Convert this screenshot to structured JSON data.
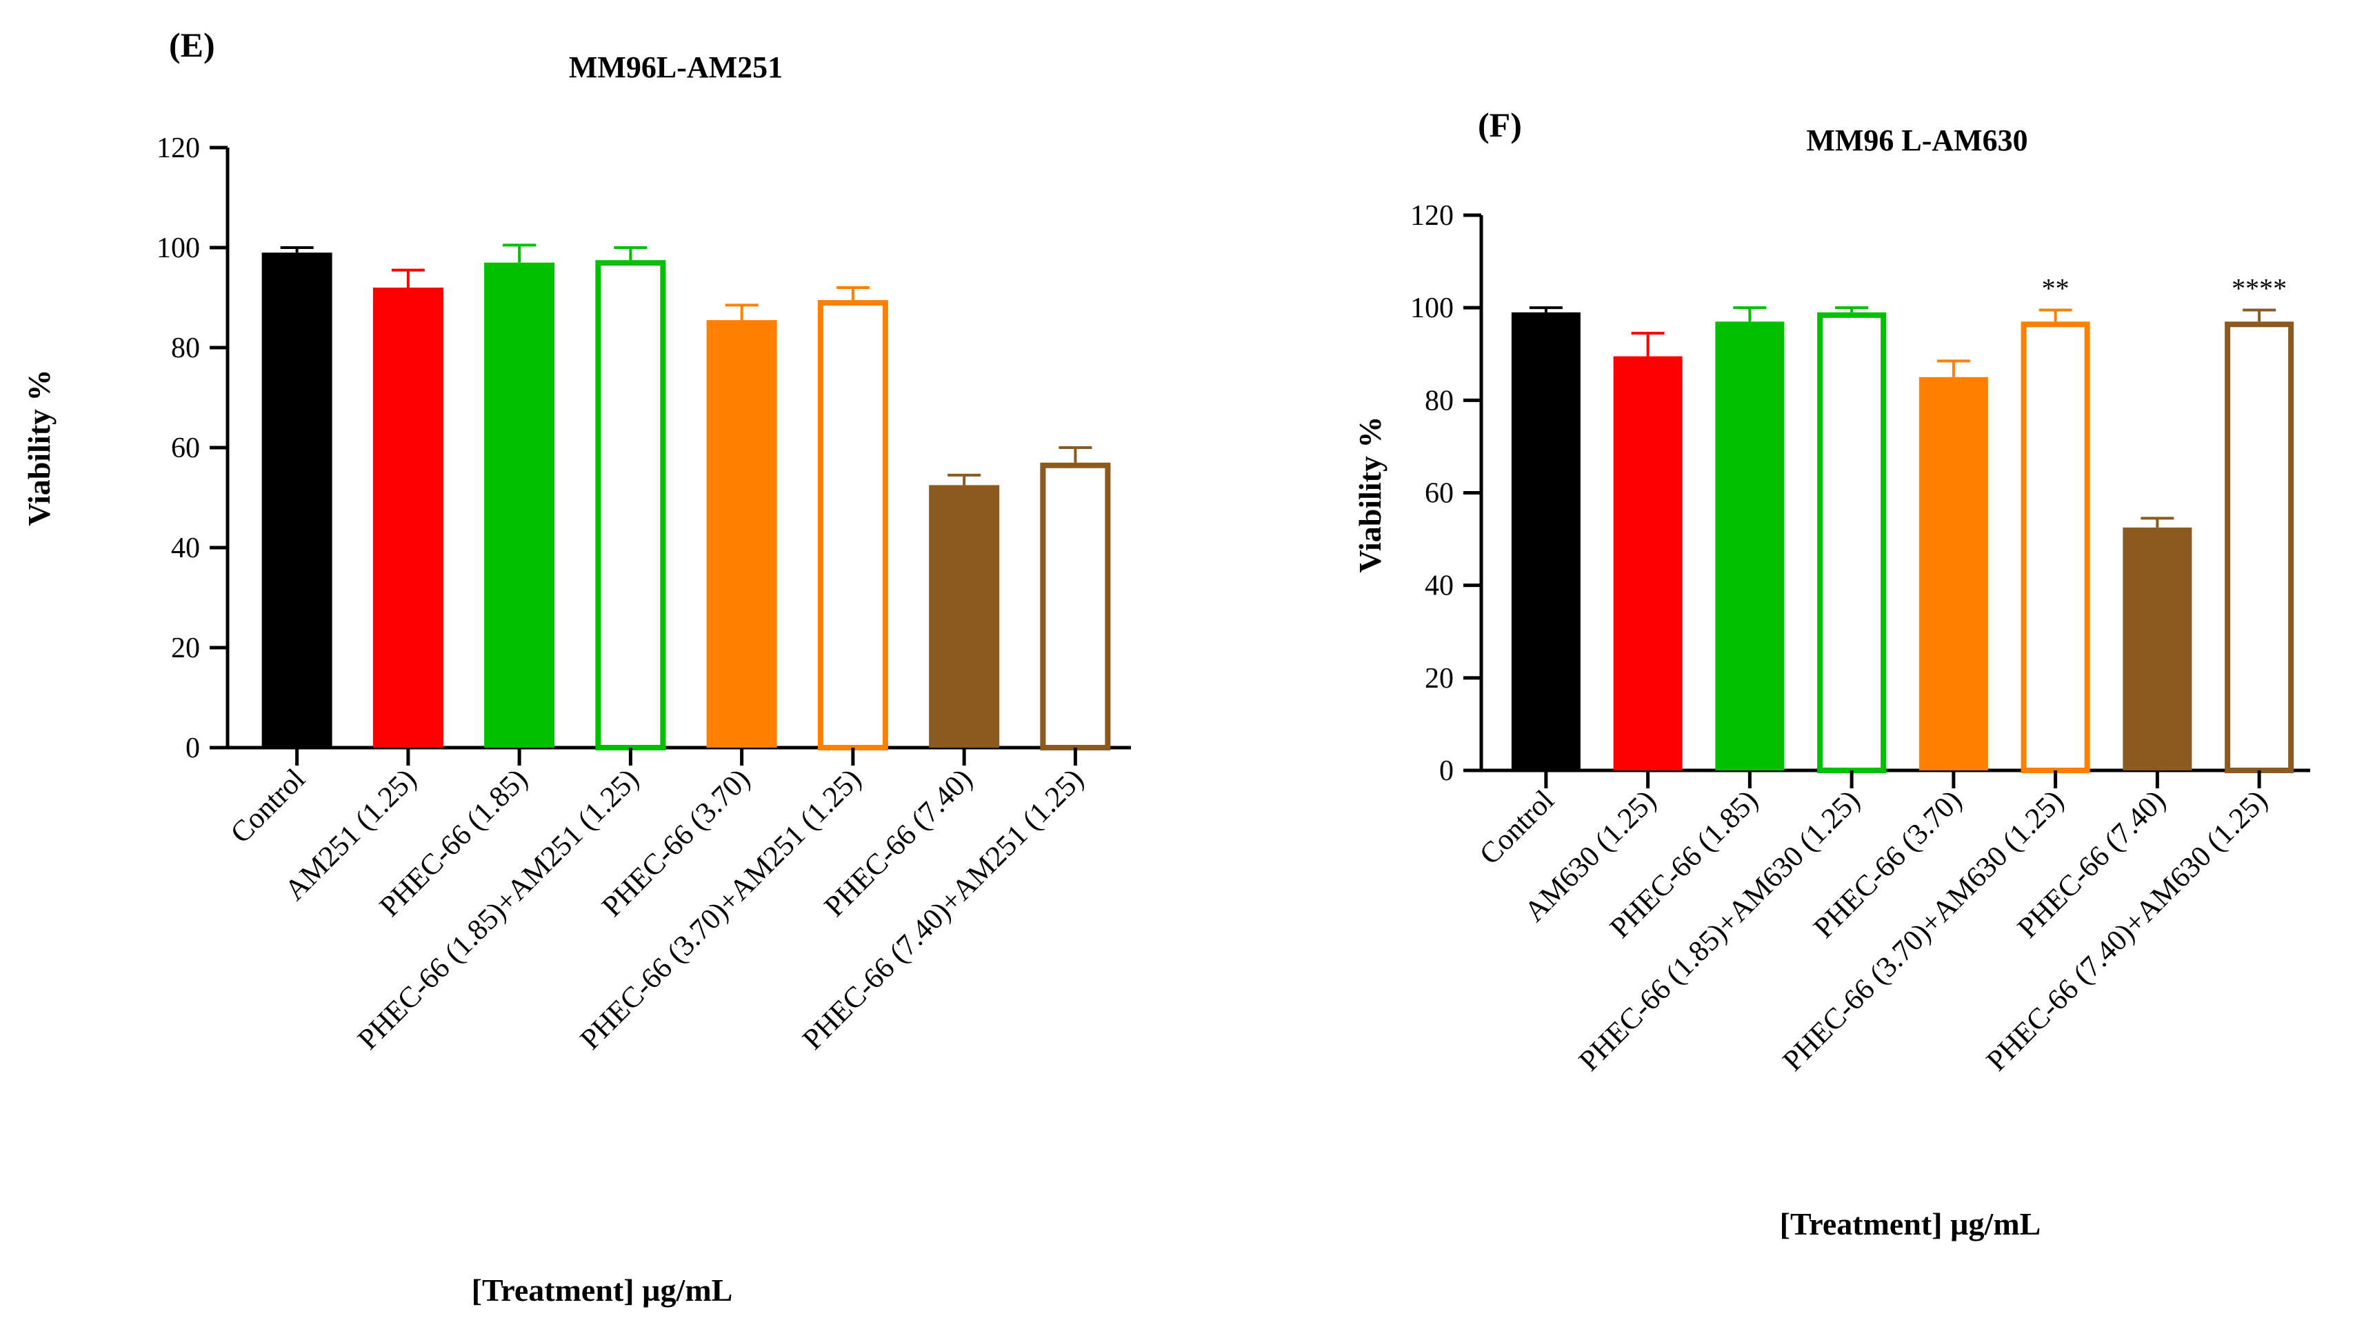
{
  "chart_data": [
    {
      "type": "bar",
      "panel": "(E)",
      "title": "MM96L-AM251",
      "xlabel": "[Treatment] µg/mL",
      "ylabel": "Viability %",
      "ylim": [
        0,
        120
      ],
      "yticks": [
        "0",
        "20",
        "40",
        "60",
        "80",
        "100",
        "120"
      ],
      "grid": false,
      "categories": [
        "Control",
        "AM251 (1.25)",
        "PHEC-66 (1.85)",
        "PHEC-66 (1.85)+AM251 (1.25)",
        "PHEC-66 (3.70)",
        "PHEC-66 (3.70)+AM251 (1.25)",
        "PHEC-66 (7.40)",
        "PHEC-66 (7.40)+AM251 (1.25)"
      ],
      "values": [
        99,
        92,
        97,
        97.5,
        85.5,
        89.5,
        52.5,
        57
      ],
      "errors": [
        1,
        3.5,
        3.5,
        2.5,
        3,
        2.5,
        2,
        3
      ],
      "colors": [
        "#000000",
        "#ff0000",
        "#00c000",
        "#00c000",
        "#ff8000",
        "#ff8000",
        "#8b5a1e",
        "#8b5a1e"
      ],
      "hollow": [
        false,
        false,
        false,
        true,
        false,
        true,
        false,
        true
      ],
      "significance": [
        "",
        "",
        "",
        "",
        "",
        "",
        "",
        ""
      ]
    },
    {
      "type": "bar",
      "panel": "(F)",
      "title": "MM96 L-AM630",
      "xlabel": "[Treatment] µg/mL",
      "ylabel": "Viability %",
      "ylim": [
        0,
        120
      ],
      "yticks": [
        "0",
        "20",
        "40",
        "60",
        "80",
        "100",
        "120"
      ],
      "grid": false,
      "categories": [
        "Control",
        "AM630 (1.25)",
        "PHEC-66 (1.85)",
        "PHEC-66 (1.85)+AM630 (1.25)",
        "PHEC-66 (3.70)",
        "PHEC-66 (3.70)+AM630 (1.25)",
        "PHEC-66 (7.40)",
        "PHEC-66 (7.40)+AM630 (1.25)"
      ],
      "values": [
        99,
        89.5,
        97,
        99,
        85,
        97,
        52.5,
        97
      ],
      "errors": [
        1,
        5,
        3,
        1,
        3.5,
        2.5,
        2,
        2.5
      ],
      "colors": [
        "#000000",
        "#ff0000",
        "#00c000",
        "#00c000",
        "#ff8000",
        "#ff8000",
        "#8b5a1e",
        "#8b5a1e"
      ],
      "hollow": [
        false,
        false,
        false,
        true,
        false,
        true,
        false,
        true
      ],
      "significance": [
        "",
        "",
        "",
        "",
        "",
        "**",
        "",
        "****"
      ]
    }
  ]
}
